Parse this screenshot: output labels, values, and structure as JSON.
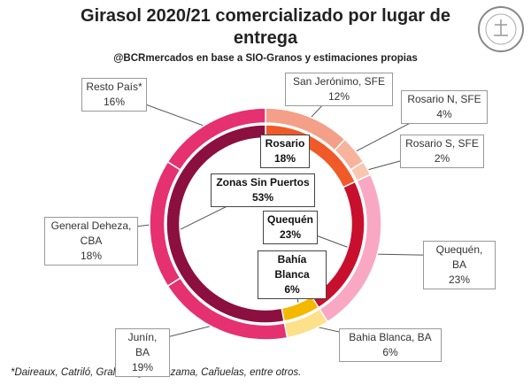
{
  "chart_data": {
    "type": "nested-donut",
    "title": "Girasol 2020/21 comercializado por lugar de entrega",
    "subtitle": "@BCRmercados  en base a SIO-Granos y estimaciones propias",
    "footnote": "*Daireaux, Catriló, Gral Villegas, Lezama, Cañuelas, entre otros.",
    "inner": {
      "categories": [
        "Rosario",
        "Quequén",
        "Bahía Blanca",
        "Zonas Sin Puertos"
      ],
      "values": [
        18,
        23,
        6,
        53
      ],
      "value_labels": [
        "18%",
        "23%",
        "6%",
        "53%"
      ],
      "colors": [
        "#f05a28",
        "#c8102e",
        "#f5b800",
        "#8b1040"
      ]
    },
    "outer": {
      "categories": [
        "San Jerónimo, SFE",
        "Rosario N, SFE",
        "Rosario S, SFE",
        "Quequén, BA",
        "Bahia Blanca, BA",
        "Junín, BA",
        "General Deheza, CBA",
        "Resto País*"
      ],
      "values": [
        12,
        4,
        2,
        23,
        6,
        19,
        18,
        16
      ],
      "value_labels": [
        "12%",
        "4%",
        "2%",
        "23%",
        "6%",
        "19%",
        "18%",
        "16%"
      ],
      "colors": [
        "#f4a088",
        "#f7b39c",
        "#f9c6b0",
        "#f9a8c4",
        "#fde08a",
        "#e5316f",
        "#e5316f",
        "#e5316f"
      ]
    }
  }
}
